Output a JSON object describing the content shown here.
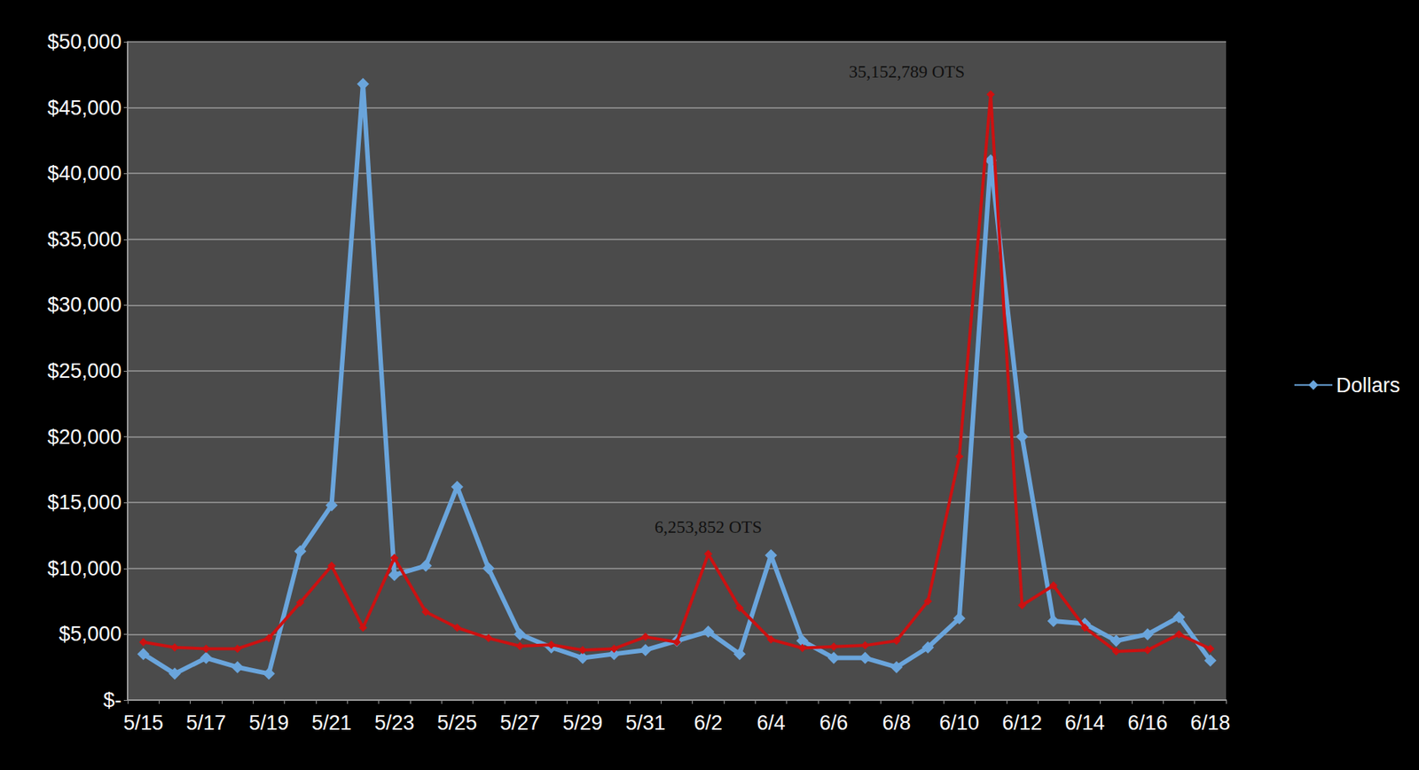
{
  "chart_data": {
    "type": "line",
    "categories": [
      "5/15",
      null,
      "5/17",
      null,
      "5/19",
      null,
      "5/21",
      null,
      "5/23",
      null,
      "5/25",
      null,
      "5/27",
      null,
      "5/29",
      null,
      "5/31",
      null,
      "6/2",
      null,
      "6/4",
      null,
      "6/6",
      null,
      "6/8",
      null,
      "6/10",
      null,
      "6/12",
      null,
      "6/14",
      null,
      "6/16",
      null,
      "6/18"
    ],
    "series": [
      {
        "name": "Dollars",
        "color": "#6aa5dc",
        "marker": "diamond",
        "values": [
          3500,
          2000,
          3200,
          2500,
          2000,
          11300,
          14800,
          46800,
          9500,
          10200,
          16200,
          10000,
          5000,
          4000,
          3200,
          3500,
          3800,
          4500,
          5200,
          3500,
          11000,
          4500,
          3200,
          3200,
          2500,
          4000,
          6200,
          41000,
          20000,
          6000,
          5800,
          4500,
          5000,
          6300,
          3000
        ]
      },
      {
        "color": "#cc1111",
        "marker": "diamond",
        "values": [
          4400,
          4000,
          3900,
          3900,
          4700,
          7400,
          10200,
          5500,
          10800,
          6700,
          5500,
          4700,
          4100,
          4200,
          3800,
          3900,
          4800,
          4400,
          11100,
          7000,
          4600,
          3950,
          4050,
          4150,
          4500,
          7500,
          18500,
          46000,
          7200,
          8700,
          5500,
          3700,
          3800,
          5000,
          3900
        ],
        "annotations": [
          {
            "text": "6,253,852 OTS",
            "index": 18
          },
          {
            "text": "35,152,789 OTS",
            "index": 27
          }
        ]
      }
    ],
    "ylim": [
      0,
      50000
    ],
    "yticks": [
      {
        "value": 0,
        "label": "$-"
      },
      {
        "value": 5000,
        "label": "$5,000"
      },
      {
        "value": 10000,
        "label": "$10,000"
      },
      {
        "value": 15000,
        "label": "$15,000"
      },
      {
        "value": 20000,
        "label": "$20,000"
      },
      {
        "value": 25000,
        "label": "$25,000"
      },
      {
        "value": 30000,
        "label": "$30,000"
      },
      {
        "value": 35000,
        "label": "$35,000"
      },
      {
        "value": 40000,
        "label": "$40,000"
      },
      {
        "value": 45000,
        "label": "$45,000"
      },
      {
        "value": 50000,
        "label": "$50,000"
      }
    ],
    "grid": true,
    "legend": "right"
  }
}
